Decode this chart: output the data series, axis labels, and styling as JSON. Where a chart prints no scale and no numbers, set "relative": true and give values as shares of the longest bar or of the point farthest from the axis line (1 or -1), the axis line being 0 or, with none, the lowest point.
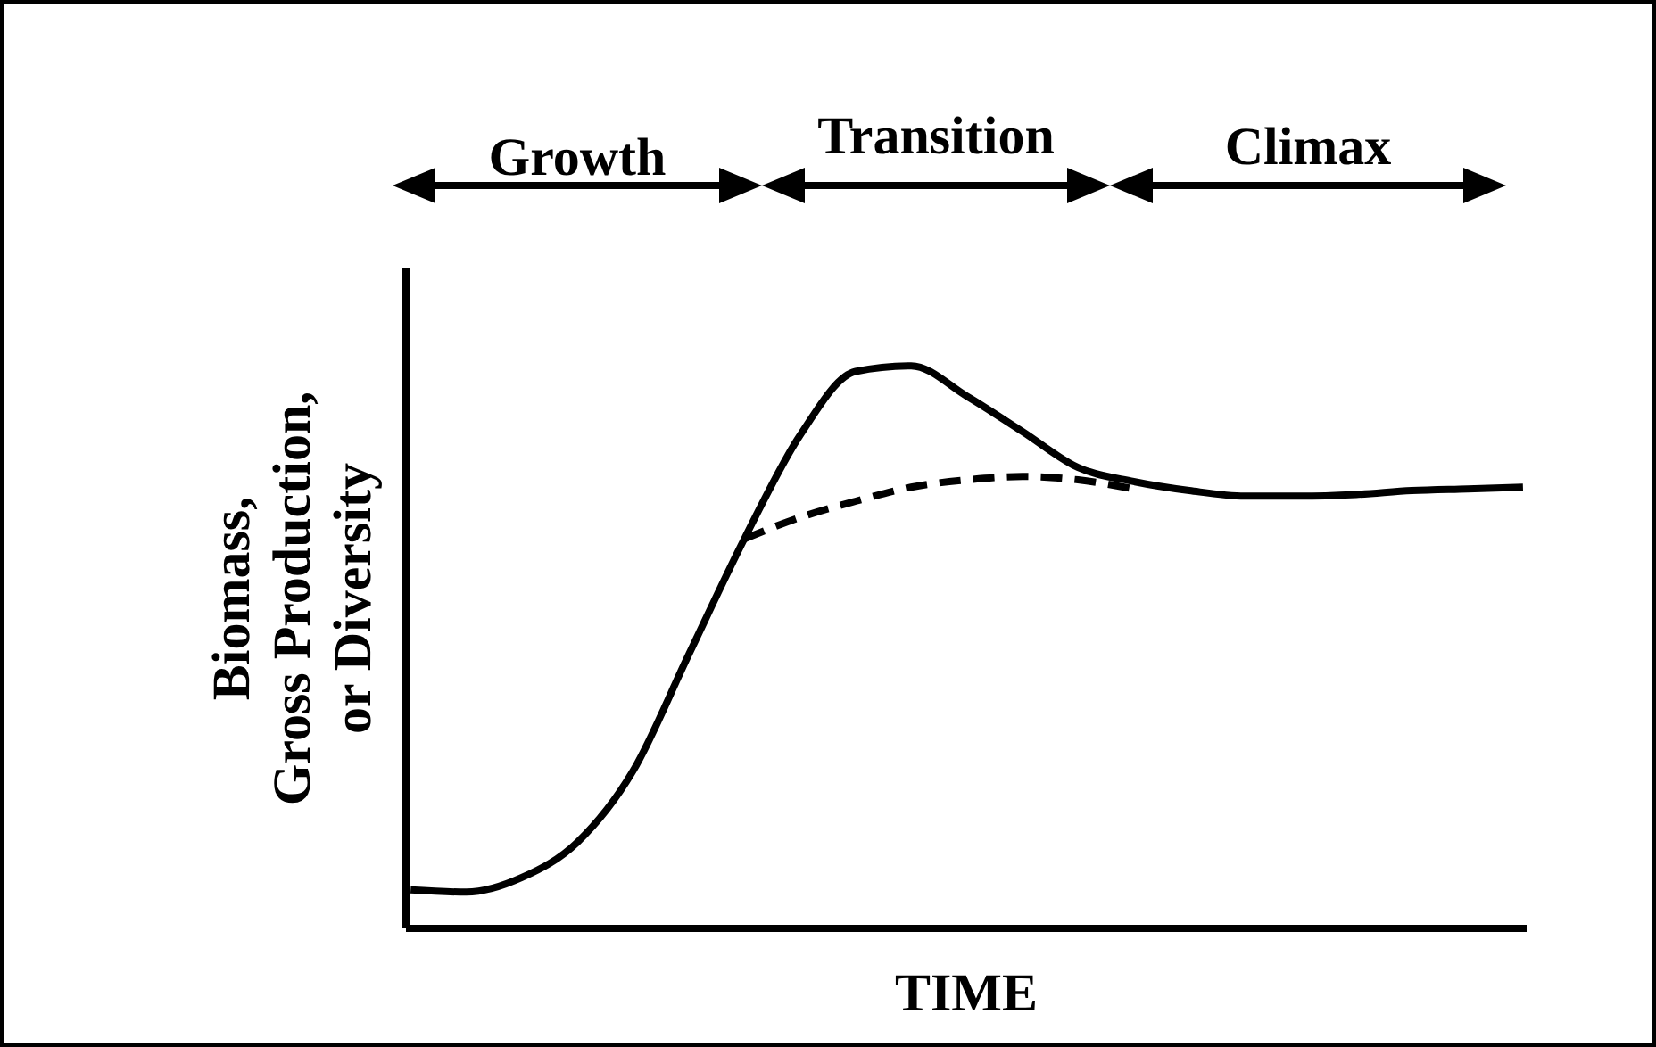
{
  "chart_data": {
    "type": "line",
    "relative": true,
    "xlabel": "TIME",
    "ylabel": "Biomass,\nGross Production,\nor Diversity",
    "categories": [
      null,
      null,
      null,
      null,
      null,
      null,
      null,
      null,
      null,
      null,
      null,
      null,
      null,
      null,
      null,
      null,
      null,
      null,
      null,
      null,
      null
    ],
    "series": [
      {
        "color": "#000000",
        "line_style": "solid",
        "values": [
          0.067,
          0.063,
          0.089,
          0.152,
          0.279,
          0.486,
          0.692,
          0.876,
          0.99,
          1,
          0.946,
          0.883,
          0.819,
          0.794,
          0.778,
          0.768,
          0.768,
          0.771,
          0.778,
          0.781,
          0.784
        ]
      },
      {
        "color": "#000000",
        "line_style": "dashed",
        "values": [
          null,
          null,
          null,
          null,
          null,
          null,
          0.692,
          0.73,
          0.759,
          0.784,
          0.797,
          0.803,
          0.797,
          0.781,
          null,
          null,
          null,
          null,
          null,
          null,
          null
        ]
      }
    ],
    "annotations": [
      "Growth",
      "Transition",
      "Climax"
    ],
    "grid": false,
    "marker": "none"
  }
}
